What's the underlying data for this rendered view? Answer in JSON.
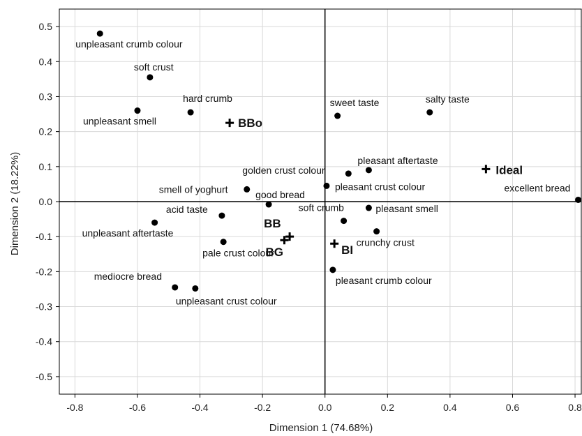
{
  "chart_data": {
    "type": "scatter",
    "xlabel": "Dimension 1 (74.68%)",
    "ylabel": "Dimension 2 (18.22%)",
    "xlim": [
      -0.85,
      0.82
    ],
    "ylim": [
      -0.55,
      0.55
    ],
    "xticks": [
      "-0.8",
      "-0.6",
      "-0.4",
      "-0.2",
      "0.0",
      "0.2",
      "0.4",
      "0.6",
      "0.8"
    ],
    "yticks": [
      "-0.5",
      "-0.4",
      "-0.3",
      "-0.2",
      "-0.1",
      "0.0",
      "0.1",
      "0.2",
      "0.3",
      "0.4",
      "0.5"
    ],
    "grid": true,
    "attributes": [
      {
        "label": "unpleasant crumb colour",
        "x": -0.72,
        "y": 0.48
      },
      {
        "label": "soft crust",
        "x": -0.56,
        "y": 0.355
      },
      {
        "label": "unpleasant smell",
        "x": -0.6,
        "y": 0.26
      },
      {
        "label": "hard crumb",
        "x": -0.43,
        "y": 0.255
      },
      {
        "label": "sweet taste",
        "x": 0.04,
        "y": 0.245
      },
      {
        "label": "salty taste",
        "x": 0.335,
        "y": 0.255
      },
      {
        "label": "golden crust colour",
        "x": 0.075,
        "y": 0.08
      },
      {
        "label": "pleasant aftertaste",
        "x": 0.14,
        "y": 0.09
      },
      {
        "label": "smell of yoghurt",
        "x": -0.25,
        "y": 0.035
      },
      {
        "label": "pleasant crust colour",
        "x": 0.005,
        "y": 0.045
      },
      {
        "label": "good bread",
        "x": -0.18,
        "y": -0.008
      },
      {
        "label": "excellent bread",
        "x": 0.81,
        "y": 0.005
      },
      {
        "label": "acid taste",
        "x": -0.33,
        "y": -0.04
      },
      {
        "label": "unpleasant aftertaste",
        "x": -0.545,
        "y": -0.06
      },
      {
        "label": "soft crumb",
        "x": 0.06,
        "y": -0.055
      },
      {
        "label": "pleasant smell",
        "x": 0.14,
        "y": -0.018
      },
      {
        "label": "crunchy crust",
        "x": 0.165,
        "y": -0.085
      },
      {
        "label": "pale crust colour",
        "x": -0.325,
        "y": -0.115
      },
      {
        "label": "pleasant crumb colour",
        "x": 0.025,
        "y": -0.195
      },
      {
        "label": "mediocre bread",
        "x": -0.48,
        "y": -0.245
      },
      {
        "label": "unpleasant crust colour",
        "x": -0.415,
        "y": -0.248
      }
    ],
    "products": [
      {
        "label": "BBo",
        "x": -0.305,
        "y": 0.225
      },
      {
        "label": "Ideal",
        "x": 0.515,
        "y": 0.093
      },
      {
        "label": "BB",
        "x": -0.113,
        "y": -0.1
      },
      {
        "label": "BG",
        "x": -0.13,
        "y": -0.11
      },
      {
        "label": "BI",
        "x": 0.03,
        "y": -0.12
      }
    ]
  }
}
